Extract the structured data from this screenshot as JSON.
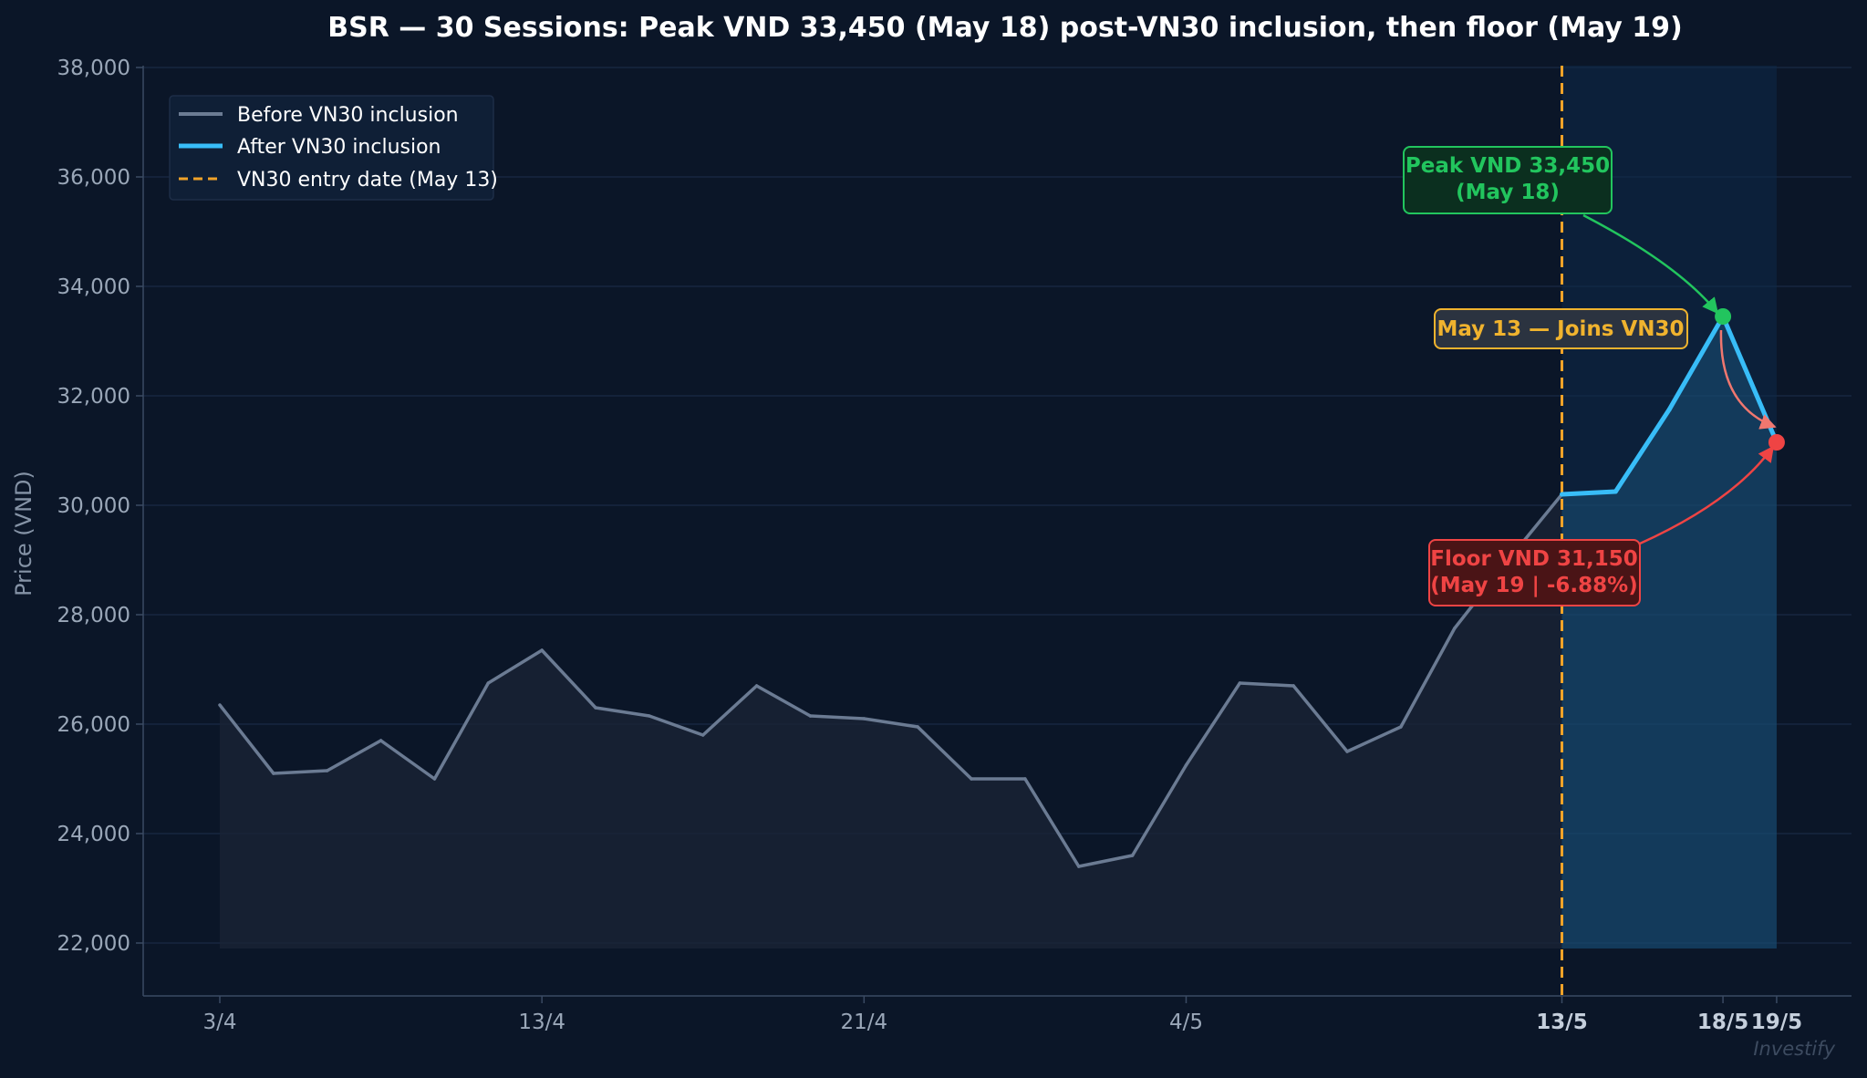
{
  "chart_data": {
    "type": "line",
    "title": "BSR — 30 Sessions: Peak VND 33,450 (May 18) post-VN30 inclusion, then floor (May 19)",
    "xlabel": "",
    "ylabel": "Price (VND)",
    "ylim": [
      21000,
      38000
    ],
    "yticks": [
      22000,
      24000,
      26000,
      28000,
      30000,
      32000,
      34000,
      36000,
      38000
    ],
    "ytick_labels": [
      "22,000",
      "24,000",
      "26,000",
      "28,000",
      "30,000",
      "32,000",
      "34,000",
      "36,000",
      "38,000"
    ],
    "xticks": [
      {
        "index": 0,
        "label": "3/4",
        "bold": false
      },
      {
        "index": 6,
        "label": "13/4",
        "bold": false
      },
      {
        "index": 12,
        "label": "21/4",
        "bold": false
      },
      {
        "index": 18,
        "label": "4/5",
        "bold": false
      },
      {
        "index": 25,
        "label": "13/5",
        "bold": true
      },
      {
        "index": 28,
        "label": "18/5",
        "bold": true
      },
      {
        "index": 29,
        "label": "19/5",
        "bold": true
      }
    ],
    "grid": true,
    "legend_position": "top-left",
    "series": [
      {
        "name": "Before VN30 inclusion",
        "color": "#6b7b93",
        "x": [
          0,
          1,
          2,
          3,
          4,
          5,
          6,
          7,
          8,
          9,
          10,
          11,
          12,
          13,
          14,
          15,
          16,
          17,
          18,
          19,
          20,
          21,
          22,
          23,
          24,
          25
        ],
        "values": [
          26350,
          25100,
          25150,
          25700,
          25000,
          26750,
          27350,
          26300,
          26150,
          25800,
          26700,
          26150,
          26100,
          25950,
          25000,
          25000,
          23400,
          23600,
          25250,
          26750,
          26700,
          25500,
          25950,
          27750,
          29000,
          30200
        ]
      },
      {
        "name": "After VN30 inclusion",
        "color": "#38bdf8",
        "x": [
          25,
          26,
          27,
          28,
          29
        ],
        "values": [
          30200,
          30250,
          31750,
          33450,
          31150
        ]
      }
    ],
    "vline": {
      "index": 25,
      "name": "VN30 entry date (May 13)",
      "color": "#f0a329"
    },
    "annotations": {
      "peak": {
        "text_line1": "Peak VND 33,450",
        "text_line2": "(May 18)",
        "index": 28,
        "value": 33450,
        "color": "#22c55e"
      },
      "floor": {
        "text_line1": "Floor VND 31,150",
        "text_line2": "(May 19 | -6.88%)",
        "index": 29,
        "value": 31150,
        "color": "#ef4444"
      },
      "joins": {
        "text": "May 13 — Joins VN30",
        "color": "#f0b32e"
      }
    },
    "watermark": "Investify"
  },
  "colors": {
    "background": "#0b1628",
    "grid": "#1a2a44",
    "axis": "#3a4a63",
    "tick_text": "#9aa7b8",
    "title_text": "#ffffff",
    "after_shade": "#0f2a48"
  }
}
